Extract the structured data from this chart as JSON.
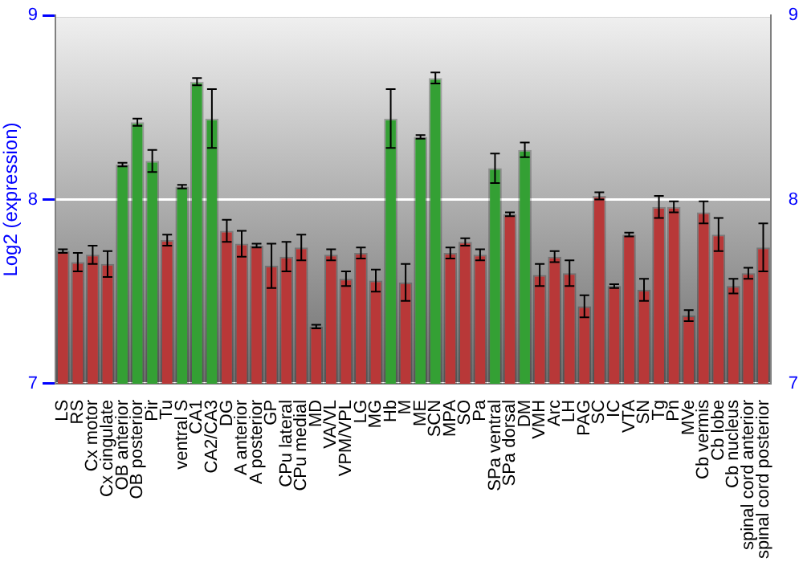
{
  "chart_data": {
    "type": "bar",
    "ylabel": "Log2 (expression)",
    "categories": [
      "LS",
      "RS",
      "Cx motor",
      "Cx cingulate",
      "OB anterior",
      "OB posterior",
      "Pir",
      "Tu",
      "ventral S",
      "CA1",
      "CA2/CA3",
      "DG",
      "A anterior",
      "A posterior",
      "GP",
      "CPu lateral",
      "CPu medial",
      "MD",
      "VA/VL",
      "VPM/VPL",
      "LG",
      "MG",
      "Hb",
      "M",
      "ME",
      "SCN",
      "MPA",
      "SO",
      "Pa",
      "SPa ventral",
      "SPa dorsal",
      "DM",
      "VMH",
      "Arc",
      "LH",
      "PAG",
      "SC",
      "IC",
      "VTA",
      "SN",
      "Tg",
      "Pn",
      "MVe",
      "Cb vermis",
      "Cb lobe",
      "Cb nucleus",
      "spinal cord anterior",
      "spinal cord posterior"
    ],
    "values": [
      7.72,
      7.66,
      7.7,
      7.65,
      8.19,
      8.42,
      8.21,
      7.78,
      8.07,
      8.64,
      8.44,
      7.83,
      7.76,
      7.75,
      7.64,
      7.69,
      7.74,
      7.31,
      7.7,
      7.57,
      7.71,
      7.56,
      8.44,
      7.55,
      8.34,
      8.66,
      7.71,
      7.77,
      7.7,
      8.17,
      7.92,
      8.27,
      7.59,
      7.69,
      7.6,
      7.42,
      8.02,
      7.53,
      7.81,
      7.51,
      7.96,
      7.96,
      7.37,
      7.93,
      7.81,
      7.53,
      7.6,
      7.74
    ],
    "errors": [
      0.01,
      0.05,
      0.05,
      0.07,
      0.01,
      0.02,
      0.06,
      0.03,
      0.01,
      0.02,
      0.16,
      0.06,
      0.07,
      0.01,
      0.12,
      0.08,
      0.07,
      0.01,
      0.03,
      0.04,
      0.03,
      0.06,
      0.16,
      0.1,
      0.01,
      0.03,
      0.03,
      0.02,
      0.03,
      0.08,
      0.01,
      0.04,
      0.06,
      0.03,
      0.07,
      0.06,
      0.02,
      0.01,
      0.01,
      0.06,
      0.06,
      0.03,
      0.03,
      0.06,
      0.09,
      0.04,
      0.03,
      0.13
    ],
    "colors": [
      "#b83838",
      "#b83838",
      "#b83838",
      "#b83838",
      "#34a034",
      "#34a034",
      "#34a034",
      "#b83838",
      "#34a034",
      "#34a034",
      "#34a034",
      "#b83838",
      "#b83838",
      "#b83838",
      "#b83838",
      "#b83838",
      "#b83838",
      "#b83838",
      "#b83838",
      "#b83838",
      "#b83838",
      "#b83838",
      "#34a034",
      "#b83838",
      "#34a034",
      "#34a034",
      "#b83838",
      "#b83838",
      "#b83838",
      "#34a034",
      "#b83838",
      "#34a034",
      "#b83838",
      "#b83838",
      "#b83838",
      "#b83838",
      "#b83838",
      "#b83838",
      "#b83838",
      "#b83838",
      "#b83838",
      "#b83838",
      "#b83838",
      "#b83838",
      "#b83838",
      "#b83838",
      "#b83838",
      "#b83838"
    ],
    "ylim": [
      7,
      9
    ],
    "yticks": [
      7,
      8,
      9
    ],
    "y2lim": [
      7,
      9
    ],
    "y2ticks": [
      7,
      8,
      9
    ],
    "grid": "y",
    "legend": false
  }
}
